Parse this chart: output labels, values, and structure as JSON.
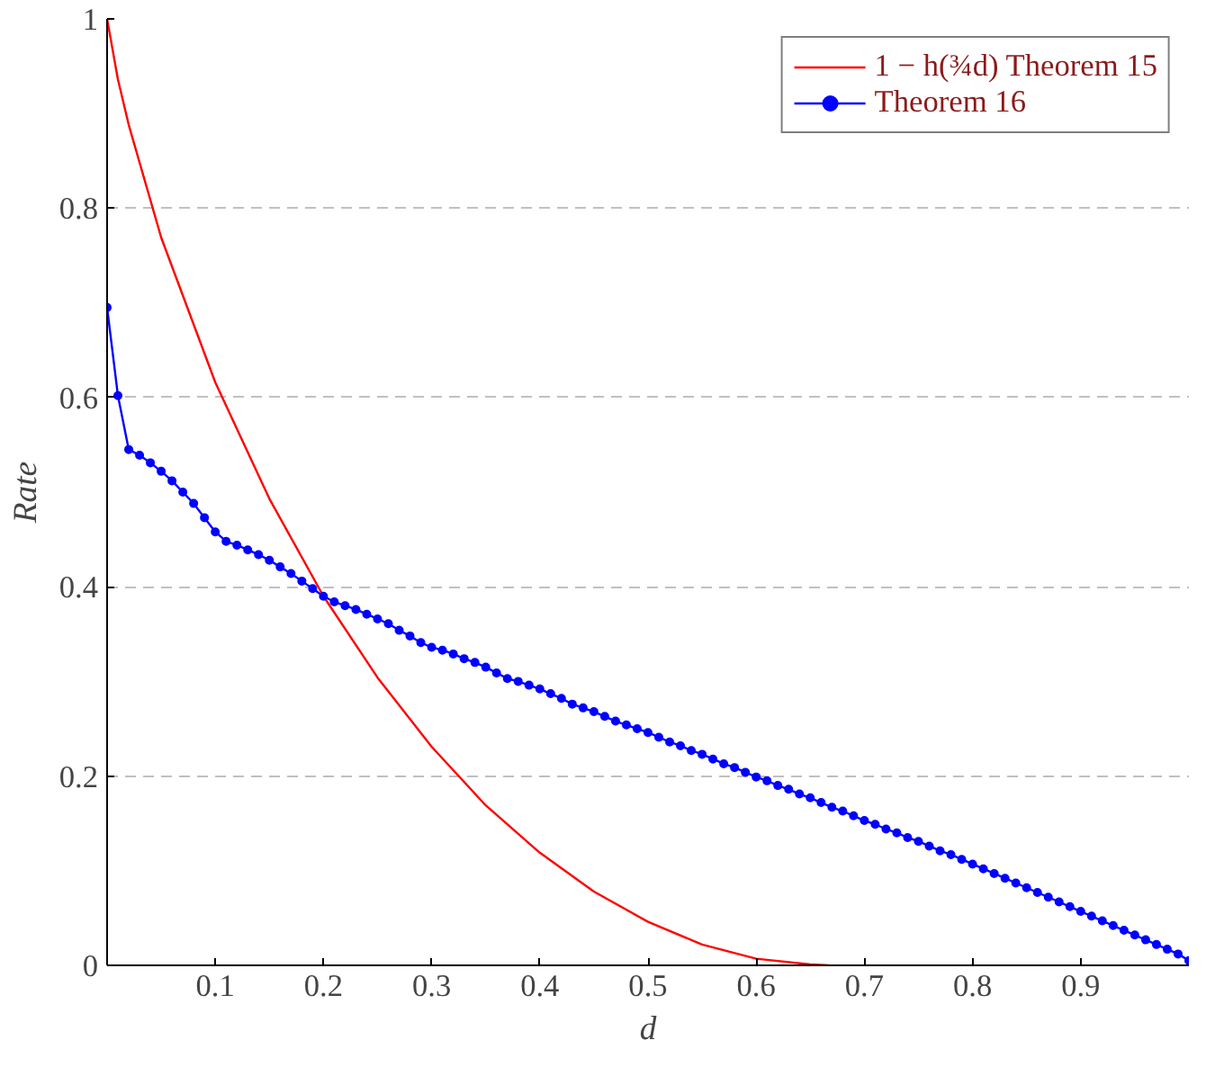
{
  "chart_data": {
    "type": "line",
    "xlabel": "d",
    "ylabel": "Rate",
    "xlim": [
      0,
      1
    ],
    "ylim": [
      0,
      1
    ],
    "xticks": [
      0.1,
      0.2,
      0.3,
      0.4,
      0.5,
      0.6,
      0.7,
      0.8,
      0.9
    ],
    "yticks": [
      0,
      0.2,
      0.4,
      0.6,
      0.8,
      1
    ],
    "grid": "y",
    "legend": "top right",
    "line_style": "solid",
    "series": [
      {
        "name": "1 − h(¾d) Theorem 15",
        "color": "#ff0000",
        "marker": "none",
        "x": [
          0,
          0.01,
          0.02,
          0.05,
          0.1,
          0.15,
          0.2,
          0.25,
          0.3,
          0.35,
          0.4,
          0.45,
          0.5,
          0.55,
          0.6,
          0.65,
          0.6667
        ],
        "values": [
          1,
          0.936,
          0.888,
          0.769,
          0.616,
          0.493,
          0.39,
          0.304,
          0.231,
          0.169,
          0.119,
          0.078,
          0.046,
          0.022,
          0.007,
          0.001,
          0
        ]
      },
      {
        "name": "Theorem 16",
        "color": "#0000ff",
        "marker": "circle",
        "x": [
          0,
          0.01,
          0.02,
          0.03,
          0.04,
          0.05,
          0.06,
          0.07,
          0.08,
          0.09,
          0.1,
          0.11,
          0.12,
          0.13,
          0.14,
          0.15,
          0.16,
          0.17,
          0.18,
          0.19,
          0.2,
          0.21,
          0.22,
          0.23,
          0.24,
          0.25,
          0.26,
          0.27,
          0.28,
          0.29,
          0.3,
          0.31,
          0.32,
          0.33,
          0.34,
          0.35,
          0.36,
          0.37,
          0.38,
          0.39,
          0.4,
          0.41,
          0.42,
          0.43,
          0.44,
          0.45,
          0.46,
          0.47,
          0.48,
          0.49,
          0.5,
          0.51,
          0.52,
          0.53,
          0.54,
          0.55,
          0.56,
          0.57,
          0.58,
          0.59,
          0.6,
          0.61,
          0.62,
          0.63,
          0.64,
          0.65,
          0.66,
          0.67,
          0.68,
          0.69,
          0.7,
          0.71,
          0.72,
          0.73,
          0.74,
          0.75,
          0.76,
          0.77,
          0.78,
          0.79,
          0.8,
          0.81,
          0.82,
          0.83,
          0.84,
          0.85,
          0.86,
          0.87,
          0.88,
          0.89,
          0.9,
          0.91,
          0.92,
          0.93,
          0.94,
          0.95,
          0.96,
          0.97,
          0.98,
          0.99,
          1
        ],
        "values": [
          0.695,
          0.602,
          0.545,
          0.539,
          0.531,
          0.522,
          0.512,
          0.5,
          0.488,
          0.473,
          0.458,
          0.448,
          0.444,
          0.439,
          0.434,
          0.428,
          0.421,
          0.414,
          0.406,
          0.398,
          0.39,
          0.384,
          0.38,
          0.376,
          0.371,
          0.366,
          0.361,
          0.354,
          0.348,
          0.341,
          0.336,
          0.333,
          0.329,
          0.324,
          0.32,
          0.315,
          0.309,
          0.303,
          0.3,
          0.296,
          0.292,
          0.287,
          0.282,
          0.276,
          0.272,
          0.268,
          0.263,
          0.258,
          0.254,
          0.25,
          0.246,
          0.241,
          0.236,
          0.232,
          0.227,
          0.223,
          0.218,
          0.213,
          0.209,
          0.204,
          0.199,
          0.195,
          0.19,
          0.186,
          0.181,
          0.177,
          0.172,
          0.167,
          0.163,
          0.158,
          0.153,
          0.149,
          0.144,
          0.14,
          0.135,
          0.131,
          0.126,
          0.121,
          0.117,
          0.112,
          0.107,
          0.102,
          0.097,
          0.092,
          0.087,
          0.082,
          0.077,
          0.072,
          0.067,
          0.062,
          0.057,
          0.052,
          0.047,
          0.042,
          0.037,
          0.032,
          0.027,
          0.022,
          0.017,
          0.012,
          0.005
        ]
      }
    ]
  }
}
